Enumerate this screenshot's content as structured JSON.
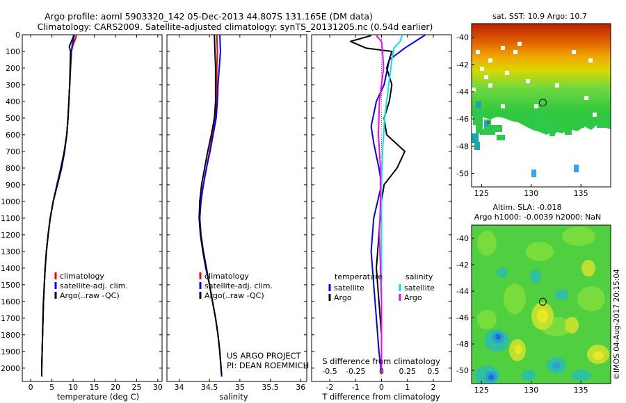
{
  "header": {
    "line1": "Argo profile: aoml 5903320_142 05-Dec-2013 44.807S 131.165E (DM data)",
    "line2": "Climatology: CARS2009. Satellite-adjusted climatology: synTS_20131205.nc (0.54d earlier)"
  },
  "footer": {
    "project": "US ARGO PROJECT",
    "pi": "PI: DEAN ROEMMICH",
    "stamp": "©IMOS 04-Aug-2017 20:15:04"
  },
  "colors": {
    "climatology": "#ff0000",
    "satellite": "#0000ff",
    "argo": "#000000",
    "sal_satellite": "#00e5e5",
    "sal_argo": "#ff00ff"
  },
  "chart_data": [
    {
      "id": "temperature",
      "type": "line",
      "xlabel": "temperature (deg C)",
      "ylabel": "",
      "xlim": [
        -2,
        31
      ],
      "ylim": [
        2080,
        0
      ],
      "xticks": [
        0,
        5,
        10,
        15,
        20,
        25,
        30
      ],
      "yticks": [
        0,
        100,
        200,
        300,
        400,
        500,
        600,
        700,
        800,
        900,
        1000,
        1100,
        1200,
        1300,
        1400,
        1500,
        1600,
        1700,
        1800,
        1900,
        2000
      ],
      "legend": [
        "climatology",
        "satellite-adj. clim.",
        "Argo(..raw -QC)"
      ],
      "legend_position": "lower-center",
      "series": [
        {
          "name": "climatology",
          "color": "#ff0000",
          "values": [
            [
              10.8,
              0
            ],
            [
              10.5,
              30
            ],
            [
              10.0,
              60
            ],
            [
              9.6,
              100
            ],
            [
              9.4,
              200
            ],
            [
              9.2,
              300
            ],
            [
              9.0,
              400
            ],
            [
              8.8,
              500
            ],
            [
              8.5,
              600
            ],
            [
              7.9,
              700
            ],
            [
              7.1,
              800
            ],
            [
              6.2,
              900
            ],
            [
              5.3,
              1000
            ],
            [
              4.6,
              1100
            ],
            [
              4.1,
              1200
            ],
            [
              3.7,
              1300
            ],
            [
              3.4,
              1400
            ],
            [
              3.2,
              1500
            ],
            [
              3.0,
              1600
            ],
            [
              2.9,
              1700
            ],
            [
              2.8,
              1800
            ],
            [
              2.7,
              1900
            ],
            [
              2.6,
              2000
            ],
            [
              2.6,
              2050
            ]
          ]
        },
        {
          "name": "satellite-adj. clim.",
          "color": "#0000ff",
          "values": [
            [
              10.3,
              0
            ],
            [
              10.1,
              30
            ],
            [
              9.8,
              60
            ],
            [
              9.6,
              100
            ],
            [
              9.4,
              200
            ],
            [
              9.2,
              300
            ],
            [
              9.0,
              400
            ],
            [
              8.8,
              500
            ],
            [
              8.5,
              600
            ],
            [
              7.9,
              700
            ],
            [
              7.1,
              800
            ],
            [
              6.2,
              900
            ],
            [
              5.3,
              1000
            ],
            [
              4.6,
              1100
            ],
            [
              4.1,
              1200
            ],
            [
              3.7,
              1300
            ],
            [
              3.4,
              1400
            ],
            [
              3.2,
              1500
            ],
            [
              3.0,
              1600
            ],
            [
              2.9,
              1700
            ],
            [
              2.8,
              1800
            ],
            [
              2.7,
              1900
            ],
            [
              2.6,
              2000
            ],
            [
              2.6,
              2050
            ]
          ]
        },
        {
          "name": "Argo(..raw -QC)",
          "color": "#000000",
          "values": [
            [
              10.2,
              5
            ],
            [
              9.6,
              40
            ],
            [
              9.1,
              70
            ],
            [
              9.4,
              100
            ],
            [
              9.3,
              200
            ],
            [
              9.2,
              300
            ],
            [
              9.0,
              400
            ],
            [
              8.8,
              500
            ],
            [
              8.5,
              600
            ],
            [
              8.0,
              700
            ],
            [
              7.3,
              800
            ],
            [
              6.3,
              900
            ],
            [
              5.3,
              1000
            ],
            [
              4.6,
              1100
            ],
            [
              4.1,
              1200
            ],
            [
              3.7,
              1300
            ],
            [
              3.4,
              1400
            ],
            [
              3.2,
              1500
            ],
            [
              3.0,
              1600
            ],
            [
              2.9,
              1700
            ],
            [
              2.8,
              1800
            ],
            [
              2.7,
              1900
            ],
            [
              2.6,
              2000
            ],
            [
              2.6,
              2040
            ]
          ]
        }
      ]
    },
    {
      "id": "salinity",
      "type": "line",
      "xlabel": "salinity",
      "ylabel": "",
      "xlim": [
        33.8,
        36.1
      ],
      "ylim": [
        2080,
        0
      ],
      "xticks": [
        34,
        34.5,
        35,
        35.5,
        36
      ],
      "legend": [
        "climatology",
        "satellite-adj. clim.",
        "Argo(..raw -QC)"
      ],
      "legend_position": "lower-center",
      "series": [
        {
          "name": "climatology",
          "color": "#ff0000",
          "values": [
            [
              34.62,
              0
            ],
            [
              34.63,
              100
            ],
            [
              34.62,
              200
            ],
            [
              34.62,
              300
            ],
            [
              34.62,
              400
            ],
            [
              34.6,
              500
            ],
            [
              34.55,
              600
            ],
            [
              34.5,
              700
            ],
            [
              34.45,
              800
            ],
            [
              34.4,
              900
            ],
            [
              34.36,
              1000
            ],
            [
              34.34,
              1100
            ],
            [
              34.36,
              1200
            ],
            [
              34.4,
              1300
            ],
            [
              34.45,
              1400
            ],
            [
              34.5,
              1500
            ],
            [
              34.55,
              1600
            ],
            [
              34.6,
              1700
            ],
            [
              34.64,
              1800
            ],
            [
              34.67,
              1900
            ],
            [
              34.69,
              2000
            ],
            [
              34.7,
              2050
            ]
          ]
        },
        {
          "name": "satellite-adj. clim.",
          "color": "#0000ff",
          "values": [
            [
              34.67,
              0
            ],
            [
              34.68,
              100
            ],
            [
              34.66,
              200
            ],
            [
              34.64,
              300
            ],
            [
              34.63,
              400
            ],
            [
              34.61,
              500
            ],
            [
              34.56,
              600
            ],
            [
              34.51,
              700
            ],
            [
              34.45,
              800
            ],
            [
              34.4,
              900
            ],
            [
              34.36,
              1000
            ],
            [
              34.34,
              1100
            ],
            [
              34.36,
              1200
            ],
            [
              34.4,
              1300
            ],
            [
              34.45,
              1400
            ],
            [
              34.5,
              1500
            ],
            [
              34.55,
              1600
            ],
            [
              34.6,
              1700
            ],
            [
              34.64,
              1800
            ],
            [
              34.67,
              1900
            ],
            [
              34.69,
              2000
            ],
            [
              34.7,
              2050
            ]
          ]
        },
        {
          "name": "Argo(..raw -QC)",
          "color": "#000000",
          "values": [
            [
              34.58,
              0
            ],
            [
              34.59,
              100
            ],
            [
              34.6,
              200
            ],
            [
              34.6,
              300
            ],
            [
              34.6,
              400
            ],
            [
              34.58,
              500
            ],
            [
              34.53,
              600
            ],
            [
              34.47,
              700
            ],
            [
              34.42,
              800
            ],
            [
              34.37,
              900
            ],
            [
              34.34,
              1000
            ],
            [
              34.33,
              1100
            ],
            [
              34.35,
              1200
            ],
            [
              34.39,
              1300
            ],
            [
              34.44,
              1400
            ],
            [
              34.5,
              1500
            ],
            [
              34.55,
              1600
            ],
            [
              34.6,
              1700
            ],
            [
              34.64,
              1800
            ],
            [
              34.67,
              1900
            ],
            [
              34.69,
              2000
            ],
            [
              34.7,
              2040
            ]
          ]
        }
      ]
    },
    {
      "id": "difference",
      "type": "line",
      "xlabel": "T difference from climatology",
      "xlabel_top": "S difference from climatology",
      "xlim": [
        -2.7,
        2.7
      ],
      "ylim": [
        2080,
        0
      ],
      "xticks": [
        -2,
        -1,
        0,
        1,
        2
      ],
      "xticklabels": [
        "-2",
        "-1",
        "0",
        "1",
        "2"
      ],
      "sticks": [
        -0.5,
        -0.25,
        0,
        0.25,
        0.5
      ],
      "sticklabels": [
        "-0.5",
        "-0.25",
        "0",
        "0.25",
        "0.5"
      ],
      "legend_temperature_title": "temperature",
      "legend_salinity_title": "salinity",
      "legend_temperature": [
        "satellite",
        "Argo"
      ],
      "legend_salinity": [
        "satellite",
        "Argo"
      ],
      "legend_position": "lower-center",
      "series": [
        {
          "name": "T satellite",
          "color": "#0000ff",
          "values": [
            [
              1.7,
              0
            ],
            [
              1.3,
              40
            ],
            [
              0.9,
              80
            ],
            [
              0.3,
              150
            ],
            [
              0.1,
              300
            ],
            [
              -0.2,
              400
            ],
            [
              -0.4,
              550
            ],
            [
              -0.3,
              650
            ],
            [
              -0.1,
              800
            ],
            [
              0,
              900
            ],
            [
              -0.3,
              1100
            ],
            [
              -0.4,
              1300
            ],
            [
              -0.3,
              1500
            ],
            [
              -0.2,
              1700
            ],
            [
              -0.1,
              1900
            ],
            [
              0,
              2030
            ]
          ]
        },
        {
          "name": "T Argo",
          "color": "#000000",
          "values": [
            [
              -0.4,
              5
            ],
            [
              -1.2,
              40
            ],
            [
              -0.6,
              80
            ],
            [
              0.4,
              100
            ],
            [
              0.2,
              200
            ],
            [
              0.4,
              300
            ],
            [
              0.3,
              400
            ],
            [
              0.1,
              500
            ],
            [
              0.2,
              600
            ],
            [
              0.9,
              700
            ],
            [
              0.6,
              800
            ],
            [
              0.1,
              900
            ],
            [
              0,
              1000
            ],
            [
              -0.1,
              1200
            ],
            [
              -0.2,
              1400
            ],
            [
              -0.1,
              1600
            ],
            [
              0,
              1800
            ],
            [
              0,
              2030
            ]
          ]
        },
        {
          "name": "S satellite",
          "color": "#00e5e5",
          "values": [
            [
              0.2,
              0
            ],
            [
              0.18,
              40
            ],
            [
              0.12,
              80
            ],
            [
              0.1,
              150
            ],
            [
              0.07,
              300
            ],
            [
              0.03,
              500
            ],
            [
              0.01,
              700
            ],
            [
              0,
              900
            ],
            [
              0,
              1100
            ],
            [
              0,
              1500
            ],
            [
              0,
              1900
            ],
            [
              0,
              2030
            ]
          ]
        },
        {
          "name": "S Argo",
          "color": "#ff00ff",
          "values": [
            [
              -0.05,
              5
            ],
            [
              0,
              40
            ],
            [
              0.01,
              100
            ],
            [
              0.02,
              200
            ],
            [
              -0.02,
              400
            ],
            [
              -0.03,
              600
            ],
            [
              -0.01,
              800
            ],
            [
              -0.01,
              1000
            ],
            [
              -0.02,
              1200
            ],
            [
              -0.01,
              1400
            ],
            [
              0,
              1600
            ],
            [
              0,
              1800
            ],
            [
              0,
              2030
            ]
          ]
        }
      ]
    },
    {
      "id": "sst-map",
      "type": "heatmap",
      "title": "sat. SST: 10.9  Argo: 10.7",
      "xlim": [
        124,
        138
      ],
      "ylim": [
        -51,
        -39
      ],
      "xticks": [
        125,
        130,
        135
      ],
      "yticks": [
        -40,
        -42,
        -44,
        -46,
        -48,
        -50
      ],
      "marker": [
        131.165,
        -44.807
      ]
    },
    {
      "id": "sla-map",
      "type": "heatmap",
      "title_line1": "Altim. SLA: -0.018",
      "title_line2": "Argo h1000: -0.0039 h2000: NaN",
      "xlim": [
        124,
        138
      ],
      "ylim": [
        -51,
        -39
      ],
      "xticks": [
        125,
        130,
        135
      ],
      "yticks": [
        -40,
        -42,
        -44,
        -46,
        -48,
        -50
      ],
      "marker": [
        131.165,
        -44.807
      ]
    }
  ]
}
